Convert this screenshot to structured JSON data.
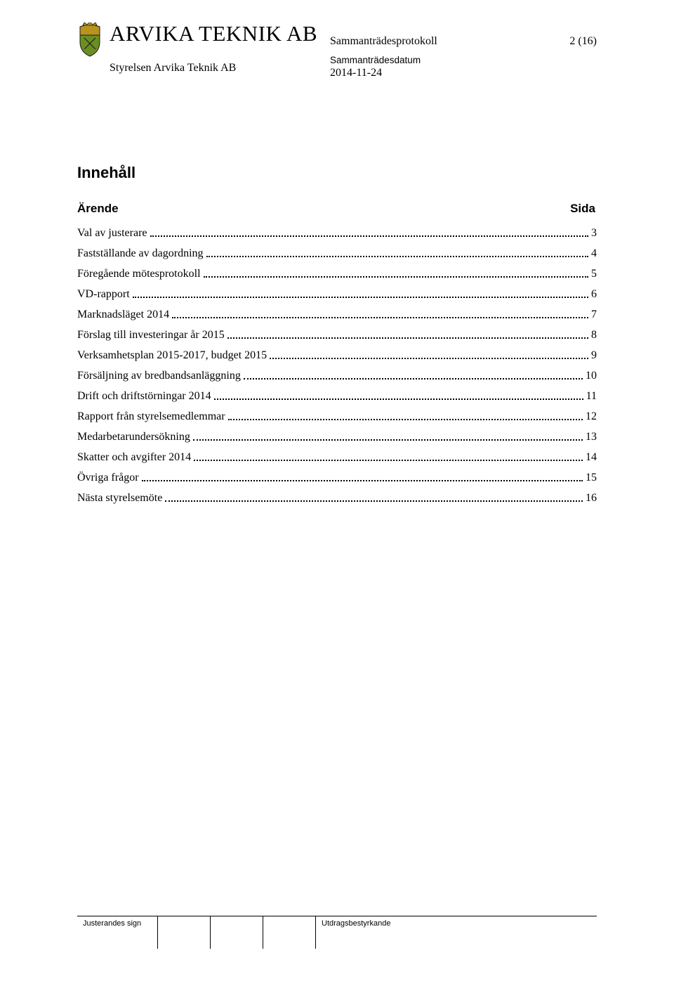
{
  "header": {
    "company_name": "ARVIKA TEKNIK AB",
    "subline": "Styrelsen Arvika Teknik AB",
    "doc_title": "Sammanträdesprotokoll",
    "page_indicator": "2 (16)",
    "meeting_date_label": "Sammanträdesdatum",
    "meeting_date": "2014-11-24",
    "crest_colors": {
      "shield_border": "#1a1a1a",
      "shield_top": "#b8941f",
      "shield_bottom": "#6b8e23",
      "crown": "#b8941f"
    }
  },
  "body": {
    "heading": "Innehåll",
    "toc_col_left": "Ärende",
    "toc_col_right": "Sida",
    "toc": [
      {
        "label": "Val av justerare",
        "page": "3"
      },
      {
        "label": "Fastställande av dagordning",
        "page": "4"
      },
      {
        "label": "Föregående mötesprotokoll",
        "page": "5"
      },
      {
        "label": "VD-rapport",
        "page": "6"
      },
      {
        "label": "Marknadsläget 2014",
        "page": "7"
      },
      {
        "label": "Förslag till investeringar år 2015",
        "page": "8"
      },
      {
        "label": "Verksamhetsplan 2015-2017, budget 2015",
        "page": "9"
      },
      {
        "label": "Försäljning av bredbandsanläggning",
        "page": "10"
      },
      {
        "label": "Drift och driftstörningar 2014",
        "page": "11"
      },
      {
        "label": "Rapport från styrelsemedlemmar",
        "page": "12"
      },
      {
        "label": "Medarbetarundersökning",
        "page": "13"
      },
      {
        "label": "Skatter och avgifter 2014",
        "page": "14"
      },
      {
        "label": "Övriga frågor",
        "page": "15"
      },
      {
        "label": "Nästa styrelsemöte",
        "page": "16"
      }
    ]
  },
  "footer": {
    "justerandes": "Justerandes sign",
    "utdrag": "Utdragsbestyrkande"
  }
}
